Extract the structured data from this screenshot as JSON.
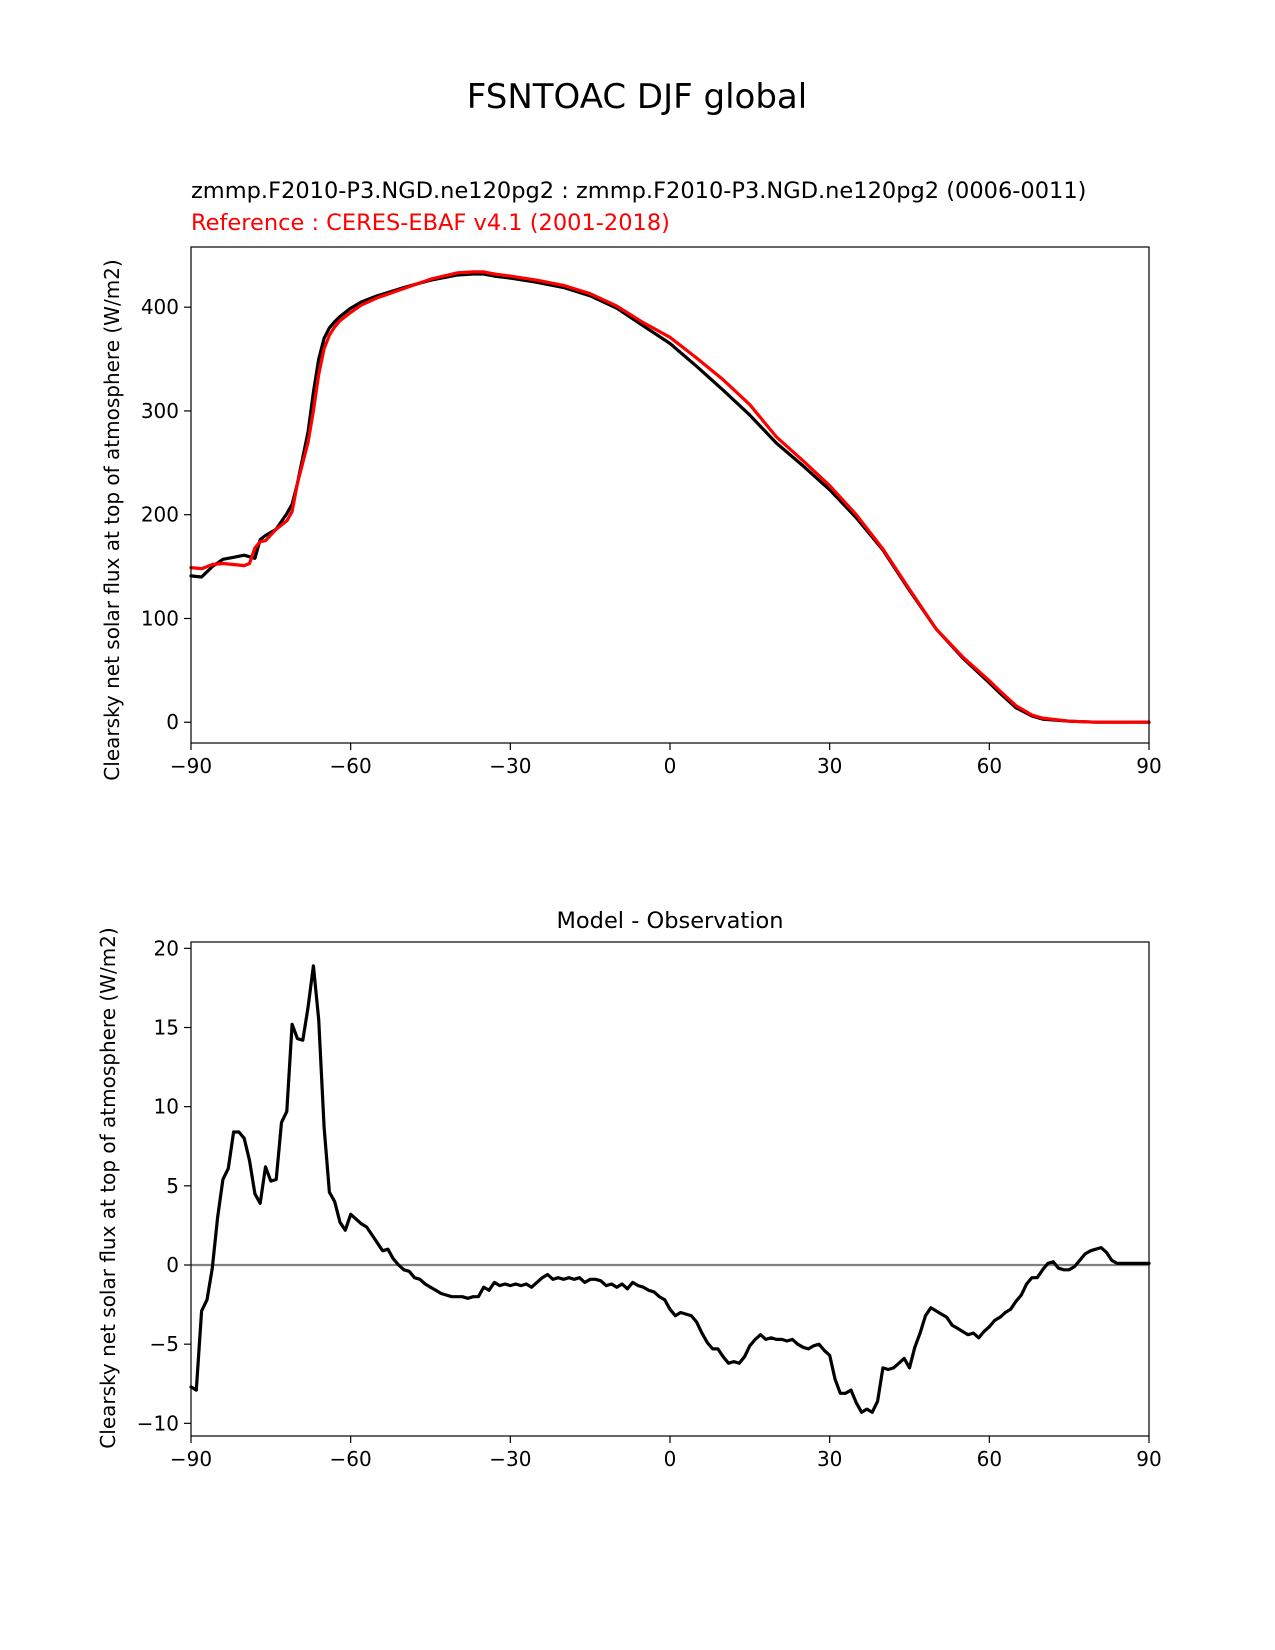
{
  "figure": {
    "title": "FSNTOAC DJF global"
  },
  "colors": {
    "test": "#000000",
    "reference": "#ff0000",
    "zero_line": "#808080"
  },
  "chart_data": [
    {
      "type": "line",
      "subtitle_test": "zmmp.F2010-P3.NGD.ne120pg2 : zmmp.F2010-P3.NGD.ne120pg2 (0006-0011)",
      "subtitle_ref": "Reference : CERES-EBAF v4.1 (2001-2018)",
      "ylabel": "Clearsky net solar flux at top of atmosphere (W/m2)",
      "xlim": [
        -90,
        90
      ],
      "ylim": [
        -20,
        458
      ],
      "xticks": [
        -90,
        -60,
        -30,
        0,
        30,
        60,
        90
      ],
      "xtick_labels": [
        "−90",
        "−60",
        "−30",
        "0",
        "30",
        "60",
        "90"
      ],
      "yticks": [
        0,
        100,
        200,
        300,
        400
      ],
      "ytick_labels": [
        "0",
        "100",
        "200",
        "300",
        "400"
      ],
      "series": [
        {
          "role": "test",
          "x": [
            -90,
            -88,
            -86,
            -84,
            -82,
            -80,
            -78,
            -77,
            -76,
            -74,
            -72,
            -71,
            -70,
            -68,
            -67,
            -66,
            -65,
            -64,
            -63,
            -62,
            -60,
            -58,
            -55,
            -50,
            -45,
            -40,
            -37,
            -35,
            -33,
            -30,
            -25,
            -20,
            -15,
            -10,
            -5,
            0,
            5,
            10,
            15,
            20,
            25,
            30,
            35,
            40,
            45,
            50,
            55,
            60,
            62,
            65,
            68,
            70,
            75,
            80,
            85,
            90
          ],
          "y": [
            141,
            140,
            150,
            157,
            159,
            161,
            158,
            176,
            180,
            186,
            201,
            210,
            230,
            280,
            318,
            350,
            370,
            380,
            386,
            391,
            399,
            405,
            411,
            419,
            426,
            431,
            432,
            432,
            430,
            428,
            424,
            419,
            411,
            399,
            382,
            365,
            343,
            320,
            296,
            269,
            247,
            224,
            197,
            166,
            127,
            90,
            62,
            38,
            28,
            14,
            6,
            3,
            1,
            0,
            0,
            0
          ]
        },
        {
          "role": "reference",
          "x": [
            -90,
            -88,
            -86,
            -84,
            -82,
            -80,
            -79,
            -78,
            -77,
            -76,
            -74,
            -72,
            -71,
            -70,
            -68,
            -67,
            -66,
            -65,
            -64,
            -63,
            -62,
            -60,
            -58,
            -55,
            -50,
            -45,
            -40,
            -37,
            -35,
            -33,
            -30,
            -25,
            -20,
            -15,
            -10,
            -5,
            0,
            5,
            10,
            15,
            20,
            25,
            30,
            35,
            40,
            45,
            50,
            55,
            60,
            62,
            65,
            68,
            70,
            75,
            80,
            85,
            90
          ],
          "y": [
            149,
            148,
            152,
            153,
            152,
            151,
            153,
            168,
            174,
            175,
            186,
            194,
            203,
            230,
            270,
            300,
            335,
            360,
            373,
            381,
            387,
            395,
            402,
            409,
            418,
            427,
            433,
            434,
            434,
            432,
            430,
            426,
            421,
            413,
            401,
            385,
            371,
            351,
            330,
            306,
            275,
            252,
            228,
            200,
            167,
            128,
            90,
            63,
            40,
            30,
            16,
            7,
            4,
            1,
            0,
            0,
            0
          ]
        }
      ]
    },
    {
      "type": "line",
      "title": "Model - Observation",
      "ylabel": "Clearsky net solar flux at top of atmosphere (W/m2)",
      "xlim": [
        -90,
        90
      ],
      "ylim": [
        -10.8,
        20.4
      ],
      "xticks": [
        -90,
        -60,
        -30,
        0,
        30,
        60,
        90
      ],
      "xtick_labels": [
        "−90",
        "−60",
        "−30",
        "0",
        "30",
        "60",
        "90"
      ],
      "yticks": [
        -10,
        -5,
        0,
        5,
        10,
        15,
        20
      ],
      "ytick_labels": [
        "−10",
        "−5",
        "0",
        "5",
        "10",
        "15",
        "20"
      ],
      "zero_line": 0,
      "series": [
        {
          "role": "difference",
          "x": [
            -90,
            -89,
            -88,
            -87,
            -86,
            -85,
            -84,
            -83,
            -82,
            -81,
            -80,
            -79,
            -78,
            -77,
            -76,
            -75,
            -74,
            -73,
            -72,
            -71,
            -70,
            -69,
            -68,
            -67,
            -66,
            -65,
            -64,
            -63,
            -62,
            -61,
            -60,
            -59,
            -58,
            -57,
            -56,
            -55,
            -54,
            -53,
            -52,
            -51,
            -50,
            -49,
            -48,
            -47,
            -46,
            -45,
            -44,
            -43,
            -42,
            -41,
            -40,
            -39,
            -38,
            -37,
            -36,
            -35,
            -34,
            -33,
            -32,
            -31,
            -30,
            -29,
            -28,
            -27,
            -26,
            -25,
            -24,
            -23,
            -22,
            -21,
            -20,
            -19,
            -18,
            -17,
            -16,
            -15,
            -14,
            -13,
            -12,
            -11,
            -10,
            -9,
            -8,
            -7,
            -6,
            -5,
            -4,
            -3,
            -2,
            -1,
            0,
            1,
            2,
            3,
            4,
            5,
            6,
            7,
            8,
            9,
            10,
            11,
            12,
            13,
            14,
            15,
            16,
            17,
            18,
            19,
            20,
            21,
            22,
            23,
            24,
            25,
            26,
            27,
            28,
            29,
            30,
            31,
            32,
            33,
            34,
            35,
            36,
            37,
            38,
            39,
            40,
            41,
            42,
            43,
            44,
            45,
            46,
            47,
            48,
            49,
            50,
            51,
            52,
            53,
            54,
            55,
            56,
            57,
            58,
            59,
            60,
            61,
            62,
            63,
            64,
            65,
            66,
            67,
            68,
            69,
            70,
            71,
            72,
            73,
            74,
            75,
            76,
            77,
            78,
            79,
            80,
            81,
            82,
            83,
            84,
            85,
            86,
            87,
            88,
            89,
            90
          ],
          "y": [
            -7.7,
            -7.9,
            -2.9,
            -2.2,
            -0.2,
            3,
            5.4,
            6.1,
            8.4,
            8.4,
            8,
            6.6,
            4.5,
            3.9,
            6.2,
            5.3,
            5.4,
            9,
            9.7,
            15.2,
            14.3,
            14.2,
            16.3,
            18.9,
            15.5,
            8.7,
            4.6,
            4,
            2.7,
            2.2,
            3.2,
            2.9,
            2.6,
            2.4,
            1.9,
            1.4,
            0.9,
            1,
            0.4,
            0,
            -0.3,
            -0.4,
            -0.8,
            -0.9,
            -1.2,
            -1.4,
            -1.6,
            -1.8,
            -1.9,
            -2,
            -2,
            -2,
            -2.1,
            -2,
            -2,
            -1.4,
            -1.6,
            -1.1,
            -1.3,
            -1.2,
            -1.3,
            -1.2,
            -1.3,
            -1.2,
            -1.4,
            -1.1,
            -0.8,
            -0.6,
            -0.9,
            -0.8,
            -0.9,
            -0.8,
            -0.9,
            -0.8,
            -1.1,
            -0.9,
            -0.9,
            -1,
            -1.3,
            -1.2,
            -1.4,
            -1.2,
            -1.5,
            -1.1,
            -1.3,
            -1.4,
            -1.6,
            -1.7,
            -2,
            -2.2,
            -2.8,
            -3.2,
            -3,
            -3.1,
            -3.2,
            -3.6,
            -4.3,
            -4.9,
            -5.3,
            -5.3,
            -5.8,
            -6.2,
            -6.1,
            -6.2,
            -5.8,
            -5.1,
            -4.7,
            -4.4,
            -4.7,
            -4.6,
            -4.7,
            -4.7,
            -4.8,
            -4.7,
            -5,
            -5.2,
            -5.3,
            -5.1,
            -5,
            -5.4,
            -5.7,
            -7.2,
            -8.1,
            -8.1,
            -7.9,
            -8.7,
            -9.3,
            -9.1,
            -9.3,
            -8.6,
            -6.5,
            -6.6,
            -6.5,
            -6.2,
            -5.9,
            -6.5,
            -5.2,
            -4.3,
            -3.2,
            -2.7,
            -2.9,
            -3.1,
            -3.3,
            -3.8,
            -4,
            -4.2,
            -4.4,
            -4.3,
            -4.6,
            -4.2,
            -3.9,
            -3.5,
            -3.3,
            -3,
            -2.8,
            -2.3,
            -1.9,
            -1.2,
            -0.8,
            -0.8,
            -0.3,
            0.1,
            0.2,
            -0.2,
            -0.3,
            -0.3,
            -0.1,
            0.3,
            0.7,
            0.9,
            1,
            1.1,
            0.8,
            0.3,
            0.1,
            0.1,
            0.1,
            0.1,
            0.1,
            0.1,
            0.1
          ]
        }
      ]
    }
  ]
}
